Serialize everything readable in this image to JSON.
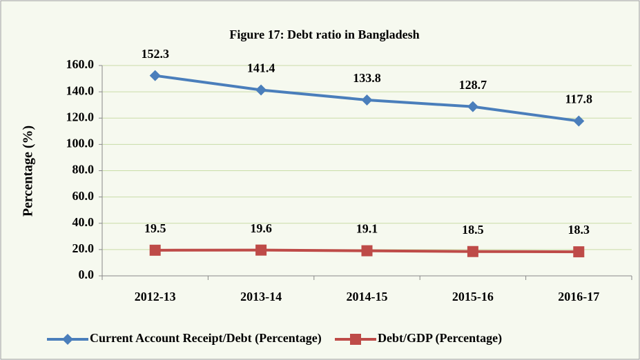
{
  "chart_data": {
    "type": "line",
    "title": "Figure 17: Debt ratio in Bangladesh",
    "y_label": "Percentage (%)",
    "categories": [
      "2012-13",
      "2013-14",
      "2014-15",
      "2015-16",
      "2016-17"
    ],
    "series": [
      {
        "name": "Current Account Receipt/Debt (Percentage)",
        "color": "#4a7ebb",
        "marker": "diamond",
        "values": [
          152.3,
          141.4,
          133.8,
          128.7,
          117.8
        ]
      },
      {
        "name": "Debt/GDP (Percentage)",
        "color": "#be4b48",
        "marker": "square",
        "values": [
          19.5,
          19.6,
          19.1,
          18.5,
          18.3
        ]
      }
    ],
    "ylim": [
      0,
      160
    ],
    "yticks": [
      {
        "value": 0,
        "label": "0.0"
      },
      {
        "value": 20,
        "label": "20.0"
      },
      {
        "value": 40,
        "label": "40.0"
      },
      {
        "value": 60,
        "label": "60.0"
      },
      {
        "value": 80,
        "label": "80.0"
      },
      {
        "value": 100,
        "label": "100.0"
      },
      {
        "value": 120,
        "label": "120.0"
      },
      {
        "value": 140,
        "label": "140.0"
      },
      {
        "value": 160,
        "label": "160.0"
      }
    ],
    "grid": true,
    "legend": "bottom"
  }
}
